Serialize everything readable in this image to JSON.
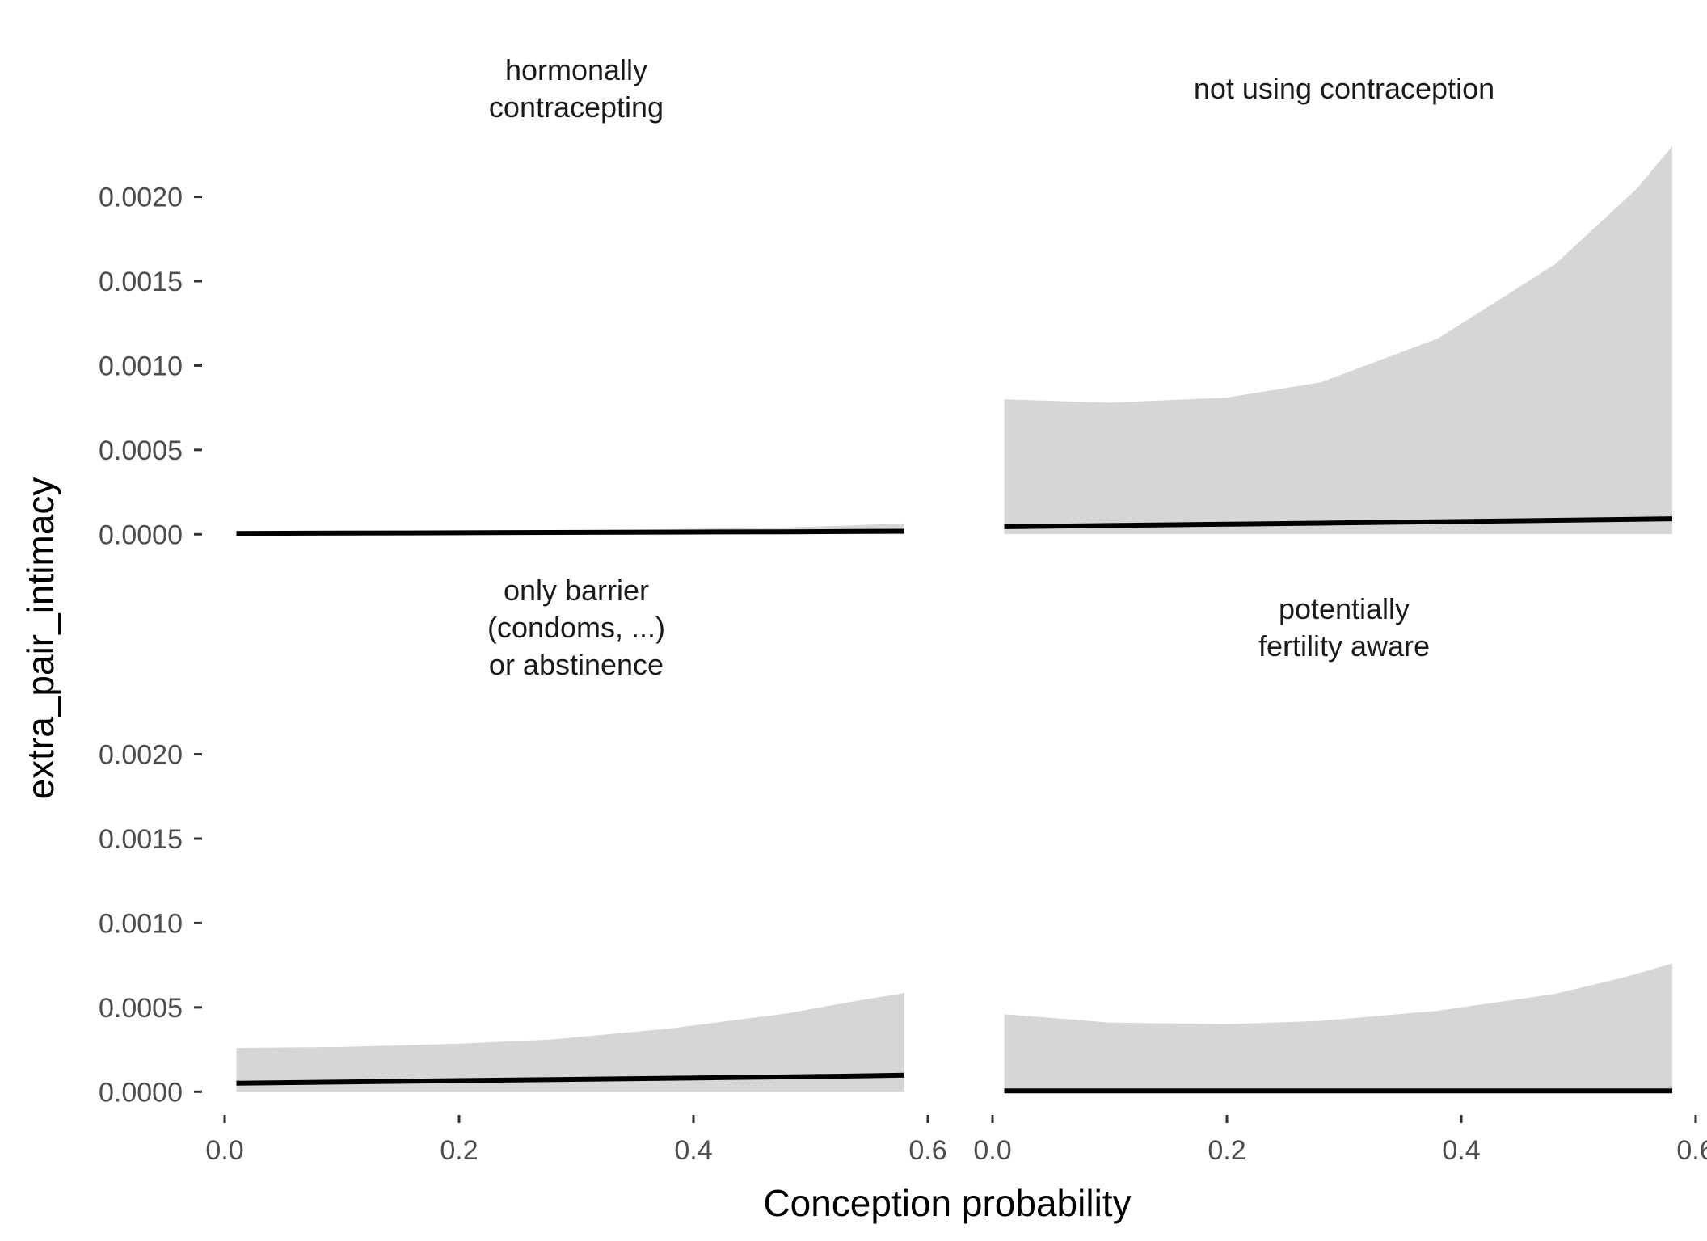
{
  "chart_data": {
    "type": "area",
    "xlabel": "Conception probability",
    "ylabel": "extra_pair_intimacy",
    "xlim": [
      0.0,
      0.6
    ],
    "ylim": [
      -8e-05,
      0.0024
    ],
    "x_ticks": [
      0.0,
      0.2,
      0.4,
      0.6
    ],
    "x_tick_labels": [
      "0.0",
      "0.2",
      "0.4",
      "0.6"
    ],
    "y_ticks": [
      0.0,
      0.0005,
      0.001,
      0.0015,
      0.002
    ],
    "y_tick_labels": [
      "0.0000",
      "0.0005",
      "0.0010",
      "0.0015",
      "0.0020"
    ],
    "grid": false,
    "colors": {
      "ribbon": "#d6d6d6",
      "line": "#000000"
    },
    "panels": [
      {
        "title": [
          "hormonally",
          "contracepting"
        ],
        "x": [
          0.01,
          0.1,
          0.2,
          0.28,
          0.38,
          0.48,
          0.54,
          0.58
        ],
        "fit": [
          5e-06,
          7e-06,
          9e-06,
          1.1e-05,
          1.3e-05,
          1.5e-05,
          1.7e-05,
          1.8e-05
        ],
        "lower": [
          1e-06,
          1e-06,
          1e-06,
          1e-06,
          1e-06,
          1e-06,
          1e-06,
          1e-06
        ],
        "upper": [
          8e-06,
          1.2e-05,
          1.7e-05,
          2.2e-05,
          3e-05,
          4.1e-05,
          5.4e-05,
          6.5e-05
        ]
      },
      {
        "title": [
          "not using contraception"
        ],
        "x": [
          0.01,
          0.1,
          0.2,
          0.28,
          0.38,
          0.48,
          0.55,
          0.58
        ],
        "fit": [
          4.5e-05,
          5.2e-05,
          6e-05,
          6.6e-05,
          7.4e-05,
          8.3e-05,
          8.9e-05,
          9.2e-05
        ],
        "lower": [
          1e-06,
          1e-06,
          1e-06,
          1e-06,
          1e-06,
          1e-06,
          1e-06,
          1e-06
        ],
        "upper": [
          0.0008,
          0.00078,
          0.00081,
          0.0009,
          0.00116,
          0.0016,
          0.00205,
          0.0023
        ]
      },
      {
        "title": [
          "only barrier",
          "(condoms, ...)",
          "or abstinence"
        ],
        "x": [
          0.01,
          0.1,
          0.2,
          0.28,
          0.38,
          0.48,
          0.54,
          0.58
        ],
        "fit": [
          5e-05,
          5.8e-05,
          6.6e-05,
          7.2e-05,
          8e-05,
          8.8e-05,
          9.4e-05,
          9.8e-05
        ],
        "lower": [
          1e-06,
          1e-06,
          1e-06,
          1e-06,
          1e-06,
          1e-06,
          1e-06,
          1e-06
        ],
        "upper": [
          0.00026,
          0.000265,
          0.000285,
          0.00031,
          0.000375,
          0.000465,
          0.00054,
          0.000585
        ]
      },
      {
        "title": [
          "potentially",
          "fertility aware"
        ],
        "x": [
          0.01,
          0.1,
          0.2,
          0.28,
          0.38,
          0.48,
          0.54,
          0.58
        ],
        "fit": [
          5e-06,
          5e-06,
          5e-06,
          5e-06,
          5e-06,
          5e-06,
          5e-06,
          5e-06
        ],
        "lower": [
          1e-06,
          1e-06,
          1e-06,
          1e-06,
          1e-06,
          1e-06,
          1e-06,
          1e-06
        ],
        "upper": [
          0.00046,
          0.00041,
          0.0004,
          0.00042,
          0.00048,
          0.00058,
          0.00068,
          0.00076
        ]
      }
    ]
  }
}
